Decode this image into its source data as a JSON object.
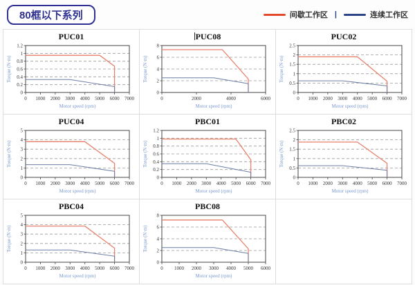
{
  "header": {
    "title": "80框以下系列",
    "legend": {
      "separator": "|",
      "items": [
        {
          "label": "间歇工作区",
          "color": "#e3492b"
        },
        {
          "label": "连续工作区",
          "color": "#2c4587"
        }
      ]
    }
  },
  "colors": {
    "accent_blue": "#2e3192",
    "legend_red": "#e3492b",
    "legend_blue": "#2c4587",
    "curve_red": "#e87f6a",
    "curve_blue": "#6c7da5",
    "grid_line": "#999999",
    "axis_line": "#444444",
    "tick_text": "#333333",
    "axis_label_text": "#7b9ad0",
    "cell_border": "#dddddd"
  },
  "chart_data": [
    {
      "type": "line",
      "title": "PUC01",
      "xlabel": "Motor speed (rpm)",
      "ylabel": "Torque (N·m)",
      "xlim": [
        0,
        7000
      ],
      "ylim": [
        0,
        1.2
      ],
      "xticks": [
        0,
        1000,
        2000,
        3000,
        4000,
        5000,
        6000,
        7000
      ],
      "yticks": [
        0,
        0.2,
        0.4,
        0.6,
        0.8,
        1,
        1.2
      ],
      "grid": "horizontal-dashed",
      "legend_position": "none",
      "series": [
        {
          "name": "间歇工作区",
          "color": "red",
          "points": [
            [
              0,
              0.95
            ],
            [
              5000,
              0.95
            ],
            [
              6000,
              0.67
            ],
            [
              6000,
              0
            ]
          ]
        },
        {
          "name": "连续工作区",
          "color": "blue",
          "points": [
            [
              0,
              0.33
            ],
            [
              3000,
              0.33
            ],
            [
              6000,
              0.15
            ],
            [
              6000,
              0
            ]
          ]
        }
      ]
    },
    {
      "type": "line",
      "title": "PUC08",
      "text_cursor": true,
      "xlabel": "Motor speed (rpm)",
      "ylabel": "Torque (N·m)",
      "xlim": [
        0,
        6000
      ],
      "ylim": [
        0,
        8
      ],
      "xticks": [
        0,
        2000,
        4000,
        6000
      ],
      "yticks": [
        0,
        2,
        4,
        6,
        8
      ],
      "grid": "horizontal-dashed",
      "legend_position": "none",
      "series": [
        {
          "name": "间歇工作区",
          "color": "red",
          "points": [
            [
              0,
              7.3
            ],
            [
              3500,
              7.3
            ],
            [
              5000,
              2.3
            ],
            [
              5000,
              0
            ]
          ]
        },
        {
          "name": "连续工作区",
          "color": "blue",
          "points": [
            [
              0,
              2.5
            ],
            [
              3000,
              2.5
            ],
            [
              5000,
              1.5
            ],
            [
              5000,
              0
            ]
          ]
        }
      ]
    },
    {
      "type": "line",
      "title": "PUC02",
      "xlabel": "Motor speed (rpm)",
      "ylabel": "Torque (N·m)",
      "xlim": [
        0,
        7000
      ],
      "ylim": [
        0,
        2.5
      ],
      "xticks": [
        0,
        1000,
        2000,
        3000,
        4000,
        5000,
        6000,
        7000
      ],
      "yticks": [
        0,
        0.5,
        1,
        1.5,
        2,
        2.5
      ],
      "grid": "horizontal-dashed",
      "legend_position": "none",
      "series": [
        {
          "name": "间歇工作区",
          "color": "red",
          "points": [
            [
              0,
              1.9
            ],
            [
              4000,
              1.9
            ],
            [
              6000,
              0.6
            ],
            [
              6000,
              0
            ]
          ]
        },
        {
          "name": "连续工作区",
          "color": "blue",
          "points": [
            [
              0,
              0.62
            ],
            [
              3000,
              0.62
            ],
            [
              6000,
              0.35
            ],
            [
              6000,
              0
            ]
          ]
        }
      ]
    },
    {
      "type": "line",
      "title": "PUC04",
      "xlabel": "Motor speed (rpm)",
      "ylabel": "Torque (N·m)",
      "xlim": [
        0,
        7000
      ],
      "ylim": [
        0,
        5
      ],
      "xticks": [
        0,
        1000,
        2000,
        3000,
        4000,
        5000,
        6000,
        7000
      ],
      "yticks": [
        0,
        1,
        2,
        3,
        4,
        5
      ],
      "grid": "horizontal-dashed",
      "legend_position": "none",
      "series": [
        {
          "name": "间歇工作区",
          "color": "red",
          "points": [
            [
              0,
              3.8
            ],
            [
              4000,
              3.8
            ],
            [
              6000,
              1.5
            ],
            [
              6000,
              0
            ]
          ]
        },
        {
          "name": "连续工作区",
          "color": "blue",
          "points": [
            [
              0,
              1.35
            ],
            [
              3000,
              1.35
            ],
            [
              6000,
              0.65
            ],
            [
              6000,
              0
            ]
          ]
        }
      ]
    },
    {
      "type": "line",
      "title": "PBC01",
      "xlabel": "Motor speed (rpm)",
      "ylabel": "Torque (N·m)",
      "xlim": [
        0,
        7000
      ],
      "ylim": [
        0,
        1.2
      ],
      "xticks": [
        0,
        1000,
        2000,
        3000,
        4000,
        5000,
        6000,
        7000
      ],
      "yticks": [
        0,
        0.2,
        0.4,
        0.6,
        0.8,
        1,
        1.2
      ],
      "grid": "horizontal-dashed",
      "legend_position": "none",
      "series": [
        {
          "name": "间歇工作区",
          "color": "red",
          "points": [
            [
              0,
              0.98
            ],
            [
              5000,
              0.98
            ],
            [
              6000,
              0.45
            ],
            [
              6000,
              0
            ]
          ]
        },
        {
          "name": "连续工作区",
          "color": "blue",
          "points": [
            [
              0,
              0.35
            ],
            [
              3000,
              0.35
            ],
            [
              6000,
              0.13
            ],
            [
              6000,
              0
            ]
          ]
        }
      ]
    },
    {
      "type": "line",
      "title": "PBC02",
      "xlabel": "Motor speed (rpm)",
      "ylabel": "Torque (N·m)",
      "xlim": [
        0,
        7000
      ],
      "ylim": [
        0,
        2.5
      ],
      "xticks": [
        0,
        1000,
        2000,
        3000,
        4000,
        5000,
        6000,
        7000
      ],
      "yticks": [
        0,
        0.5,
        1,
        1.5,
        2,
        2.5
      ],
      "grid": "horizontal-dashed",
      "legend_position": "none",
      "series": [
        {
          "name": "间歇工作区",
          "color": "red",
          "points": [
            [
              0,
              1.88
            ],
            [
              4000,
              1.88
            ],
            [
              6000,
              0.75
            ],
            [
              6000,
              0
            ]
          ]
        },
        {
          "name": "连续工作区",
          "color": "blue",
          "points": [
            [
              0,
              0.62
            ],
            [
              3000,
              0.62
            ],
            [
              6000,
              0.38
            ],
            [
              6000,
              0
            ]
          ]
        }
      ]
    },
    {
      "type": "line",
      "title": "PBC04",
      "xlabel": "Motor speed (rpm)",
      "ylabel": "Torque (N·m)",
      "xlim": [
        0,
        7000
      ],
      "ylim": [
        0,
        5
      ],
      "xticks": [
        0,
        1000,
        2000,
        3000,
        4000,
        5000,
        6000,
        7000
      ],
      "yticks": [
        0,
        1,
        2,
        3,
        4,
        5
      ],
      "grid": "horizontal-dashed",
      "legend_position": "none",
      "series": [
        {
          "name": "间歇工作区",
          "color": "red",
          "points": [
            [
              0,
              3.85
            ],
            [
              4000,
              3.85
            ],
            [
              6000,
              1.5
            ],
            [
              6000,
              0
            ]
          ]
        },
        {
          "name": "连续工作区",
          "color": "blue",
          "points": [
            [
              0,
              1.3
            ],
            [
              3000,
              1.3
            ],
            [
              6000,
              0.65
            ],
            [
              6000,
              0
            ]
          ]
        }
      ]
    },
    {
      "type": "line",
      "title": "PBC08",
      "xlabel": "Motor speed (rpm)",
      "ylabel": "Torque (N·m)",
      "xlim": [
        0,
        6000
      ],
      "ylim": [
        0,
        8
      ],
      "xticks": [
        0,
        1000,
        2000,
        3000,
        4000,
        5000,
        6000
      ],
      "yticks": [
        0,
        2,
        4,
        6,
        8
      ],
      "grid": "horizontal-dashed",
      "legend_position": "none",
      "series": [
        {
          "name": "间歇工作区",
          "color": "red",
          "points": [
            [
              0,
              7.2
            ],
            [
              3500,
              7.2
            ],
            [
              5000,
              2.3
            ],
            [
              5000,
              0
            ]
          ]
        },
        {
          "name": "连续工作区",
          "color": "blue",
          "points": [
            [
              0,
              2.5
            ],
            [
              3000,
              2.5
            ],
            [
              5000,
              1.5
            ],
            [
              5000,
              0
            ]
          ]
        }
      ]
    }
  ]
}
